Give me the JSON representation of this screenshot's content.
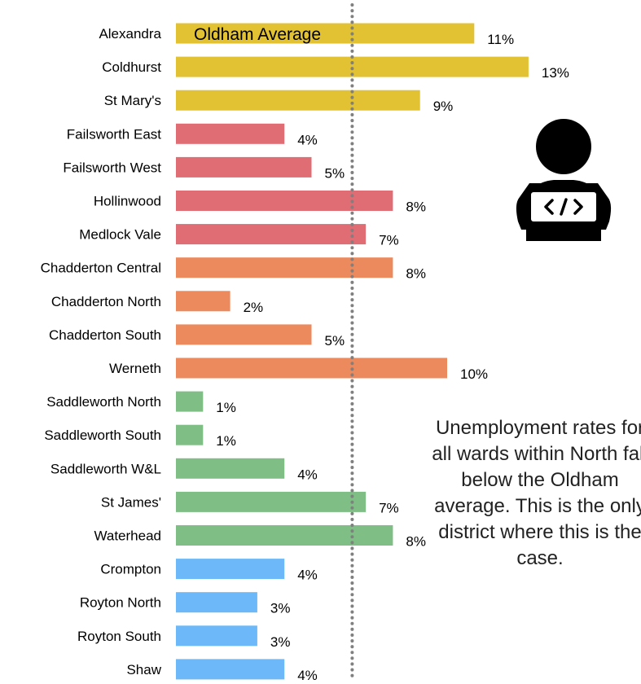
{
  "chart_data": {
    "type": "bar",
    "orientation": "horizontal",
    "categories": [
      "Alexandra",
      "Coldhurst",
      "St Mary's",
      "Failsworth East",
      "Failsworth West",
      "Hollinwood",
      "Medlock Vale",
      "Chadderton Central",
      "Chadderton North",
      "Chadderton South",
      "Werneth",
      "Saddleworth North",
      "Saddleworth South",
      "Saddleworth W&L",
      "St James'",
      "Waterhead",
      "Crompton",
      "Royton North",
      "Royton South",
      "Shaw"
    ],
    "values": [
      11,
      13,
      9,
      4,
      5,
      8,
      7,
      8,
      2,
      5,
      10,
      1,
      1,
      4,
      7,
      8,
      4,
      3,
      3,
      4
    ],
    "value_labels": [
      "11%",
      "13%",
      "9%",
      "4%",
      "5%",
      "8%",
      "7%",
      "8%",
      "2%",
      "5%",
      "10%",
      "1%",
      "1%",
      "4%",
      "7%",
      "8%",
      "4%",
      "3%",
      "3%",
      "4%"
    ],
    "bar_colors": [
      "#e2c232",
      "#e2c232",
      "#e2c232",
      "#e06c74",
      "#e06c74",
      "#e06c74",
      "#e06c74",
      "#ec8a5e",
      "#ec8a5e",
      "#ec8a5e",
      "#ec8a5e",
      "#7fbf85",
      "#7fbf85",
      "#7fbf85",
      "#7fbf85",
      "#7fbf85",
      "#6cb8f8",
      "#6cb8f8",
      "#6cb8f8",
      "#6cb8f8"
    ],
    "reference_line": {
      "label": "Oldham Average",
      "value": 8,
      "style": "dotted",
      "color": "#808080"
    },
    "xlim": [
      0,
      13.6
    ],
    "grid": false,
    "legend": "none"
  },
  "annotation": {
    "text": "Unemployment rates for all wards within North fall below the Oldham average. This is the only district where this is the case."
  },
  "icons": {
    "user": "person-at-laptop-code-icon",
    "user_color": "#000000"
  }
}
